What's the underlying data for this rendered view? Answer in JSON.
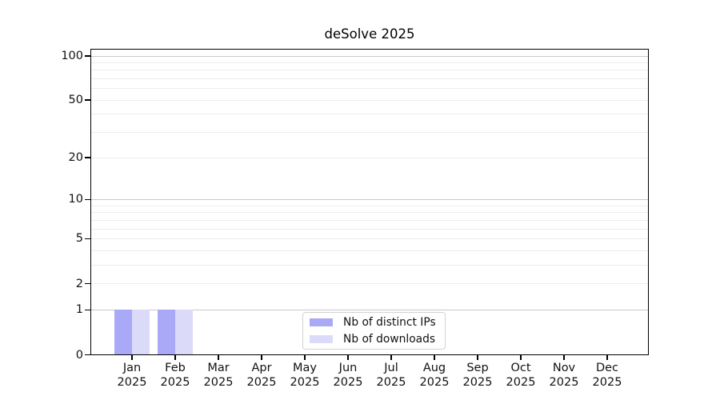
{
  "title": "deSolve 2025",
  "chart_data": {
    "type": "bar",
    "title": "deSolve 2025",
    "categories": [
      "Jan",
      "Feb",
      "Mar",
      "Apr",
      "May",
      "Jun",
      "Jul",
      "Aug",
      "Sep",
      "Oct",
      "Nov",
      "Dec"
    ],
    "year": "2025",
    "series": [
      {
        "id": "distinct-ips",
        "name": "Nb of distinct IPs",
        "color": "#a9a9f7",
        "values": [
          1,
          1,
          0,
          0,
          0,
          0,
          0,
          0,
          0,
          0,
          0,
          0
        ]
      },
      {
        "id": "downloads",
        "name": "Nb of downloads",
        "color": "#dbdbf9",
        "values": [
          1,
          1,
          0,
          0,
          0,
          0,
          0,
          0,
          0,
          0,
          0,
          0
        ]
      }
    ],
    "xlabel": "",
    "ylabel": "",
    "yscale": "log1p",
    "ylim": [
      0,
      100
    ],
    "yticks": [
      0,
      1,
      2,
      5,
      10,
      20,
      50,
      100
    ],
    "grid_major": [
      1,
      10,
      100
    ],
    "grid_minor": [
      2,
      3,
      4,
      5,
      6,
      7,
      8,
      9,
      20,
      30,
      40,
      50,
      60,
      70,
      80,
      90
    ],
    "grid": "on",
    "legend_position": "bottom-center-inside"
  },
  "colors": {
    "grid_major": "#c8c8c8",
    "grid_minor": "#ededed",
    "axis": "#000000",
    "text": "#111111",
    "background": "#ffffff"
  }
}
